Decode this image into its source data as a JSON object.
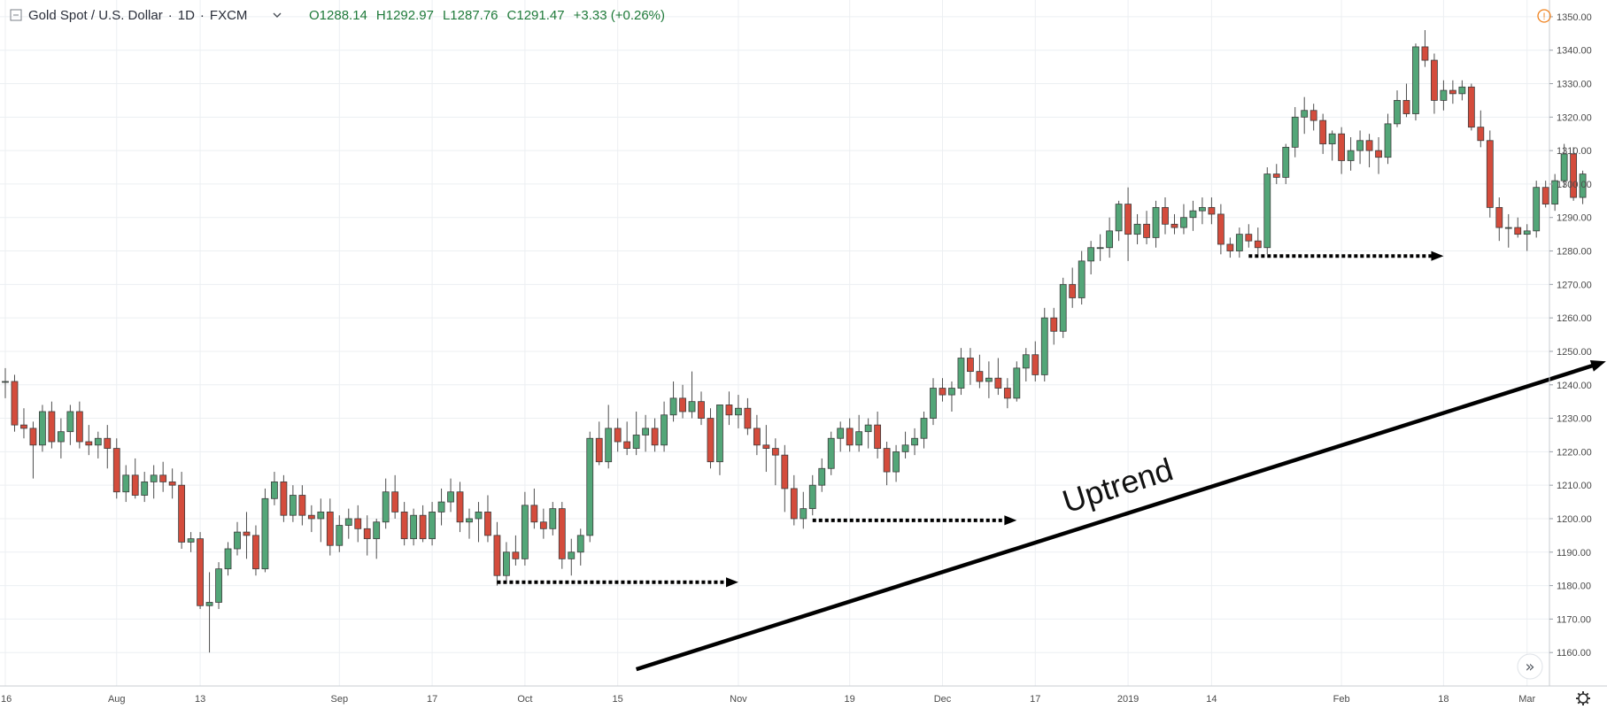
{
  "header": {
    "symbol": "Gold Spot / U.S. Dollar",
    "interval": "1D",
    "exchange": "FXCM",
    "sep": "·",
    "dropdown_icon": "chevron-down-icon",
    "ohlc": {
      "open": "O1288.14",
      "high": "H1292.97",
      "low": "L1287.76",
      "close": "C1291.47",
      "change": "+3.33 (+0.26%)"
    },
    "alert_icon": "alert-circle-icon",
    "alert_glyph": "!"
  },
  "annotation": {
    "text": "Uptrend"
  },
  "colors": {
    "up": "#53a678",
    "down": "#d44c3c",
    "grid": "#eceff2",
    "header_ohlc": "#1f7a3a",
    "alert": "#f0821e"
  },
  "footer": {
    "settings_icon": "gear-icon",
    "scroll_icon": "double-chevron-right-icon",
    "scroll_glyph": "»"
  },
  "chart_data": {
    "type": "candlestick",
    "ylim": [
      1150,
      1355
    ],
    "y_ticks": [
      "1160.00",
      "1170.00",
      "1180.00",
      "1190.00",
      "1200.00",
      "1210.00",
      "1220.00",
      "1230.00",
      "1240.00",
      "1250.00",
      "1260.00",
      "1270.00",
      "1280.00",
      "1290.00",
      "1300.00",
      "1310.00",
      "1320.00",
      "1330.00",
      "1340.00",
      "1350.00"
    ],
    "x_labels": [
      {
        "label": "16",
        "bar": 0
      },
      {
        "label": "Aug",
        "bar": 12
      },
      {
        "label": "13",
        "bar": 21
      },
      {
        "label": "Sep",
        "bar": 36
      },
      {
        "label": "17",
        "bar": 46
      },
      {
        "label": "Oct",
        "bar": 56
      },
      {
        "label": "15",
        "bar": 66
      },
      {
        "label": "Nov",
        "bar": 79
      },
      {
        "label": "19",
        "bar": 91
      },
      {
        "label": "Dec",
        "bar": 101
      },
      {
        "label": "17",
        "bar": 111
      },
      {
        "label": "2019",
        "bar": 121
      },
      {
        "label": "14",
        "bar": 130
      },
      {
        "label": "Feb",
        "bar": 144
      },
      {
        "label": "18",
        "bar": 155
      },
      {
        "label": "Mar",
        "bar": 164
      }
    ],
    "candles": [
      [
        1241,
        1245,
        1236,
        1241
      ],
      [
        1241,
        1243,
        1226,
        1228
      ],
      [
        1228,
        1233,
        1224,
        1227
      ],
      [
        1227,
        1229,
        1212,
        1222
      ],
      [
        1222,
        1234,
        1220,
        1232
      ],
      [
        1232,
        1235,
        1221,
        1223
      ],
      [
        1223,
        1230,
        1218,
        1226
      ],
      [
        1226,
        1234,
        1222,
        1232
      ],
      [
        1232,
        1235,
        1221,
        1223
      ],
      [
        1223,
        1228,
        1219,
        1222
      ],
      [
        1222,
        1226,
        1218,
        1224
      ],
      [
        1224,
        1228,
        1215,
        1221
      ],
      [
        1221,
        1224,
        1206,
        1208
      ],
      [
        1208,
        1216,
        1205,
        1213
      ],
      [
        1213,
        1218,
        1206,
        1207
      ],
      [
        1207,
        1214,
        1205,
        1211
      ],
      [
        1211,
        1216,
        1206,
        1213
      ],
      [
        1213,
        1217,
        1208,
        1211
      ],
      [
        1211,
        1215,
        1206,
        1210
      ],
      [
        1210,
        1214,
        1191,
        1193
      ],
      [
        1193,
        1196,
        1190,
        1194
      ],
      [
        1194,
        1196,
        1173,
        1174
      ],
      [
        1174,
        1184,
        1160,
        1175
      ],
      [
        1175,
        1187,
        1173,
        1185
      ],
      [
        1185,
        1193,
        1183,
        1191
      ],
      [
        1191,
        1199,
        1189,
        1196
      ],
      [
        1196,
        1202,
        1188,
        1195
      ],
      [
        1195,
        1198,
        1183,
        1185
      ],
      [
        1185,
        1209,
        1184,
        1206
      ],
      [
        1206,
        1214,
        1204,
        1211
      ],
      [
        1211,
        1213,
        1199,
        1201
      ],
      [
        1201,
        1210,
        1199,
        1207
      ],
      [
        1207,
        1210,
        1198,
        1201
      ],
      [
        1201,
        1204,
        1196,
        1200
      ],
      [
        1200,
        1206,
        1193,
        1202
      ],
      [
        1202,
        1206,
        1189,
        1192
      ],
      [
        1192,
        1201,
        1190,
        1198
      ],
      [
        1198,
        1203,
        1194,
        1200
      ],
      [
        1200,
        1204,
        1193,
        1197
      ],
      [
        1197,
        1201,
        1189,
        1194
      ],
      [
        1194,
        1200,
        1188,
        1199
      ],
      [
        1199,
        1212,
        1197,
        1208
      ],
      [
        1208,
        1213,
        1200,
        1202
      ],
      [
        1202,
        1205,
        1192,
        1194
      ],
      [
        1194,
        1203,
        1192,
        1201
      ],
      [
        1201,
        1204,
        1193,
        1194
      ],
      [
        1194,
        1205,
        1192,
        1202
      ],
      [
        1202,
        1209,
        1198,
        1205
      ],
      [
        1205,
        1212,
        1202,
        1208
      ],
      [
        1208,
        1211,
        1196,
        1199
      ],
      [
        1199,
        1203,
        1194,
        1200
      ],
      [
        1200,
        1205,
        1193,
        1202
      ],
      [
        1202,
        1207,
        1193,
        1195
      ],
      [
        1195,
        1199,
        1180,
        1183
      ],
      [
        1183,
        1193,
        1181,
        1190
      ],
      [
        1190,
        1195,
        1186,
        1188
      ],
      [
        1188,
        1208,
        1186,
        1204
      ],
      [
        1204,
        1209,
        1197,
        1199
      ],
      [
        1199,
        1203,
        1194,
        1197
      ],
      [
        1197,
        1205,
        1195,
        1203
      ],
      [
        1203,
        1205,
        1185,
        1188
      ],
      [
        1188,
        1194,
        1183,
        1190
      ],
      [
        1190,
        1197,
        1186,
        1195
      ],
      [
        1195,
        1226,
        1193,
        1224
      ],
      [
        1224,
        1229,
        1216,
        1217
      ],
      [
        1217,
        1234,
        1215,
        1227
      ],
      [
        1227,
        1230,
        1220,
        1223
      ],
      [
        1223,
        1229,
        1219,
        1221
      ],
      [
        1221,
        1232,
        1219,
        1225
      ],
      [
        1225,
        1231,
        1220,
        1227
      ],
      [
        1227,
        1230,
        1220,
        1222
      ],
      [
        1222,
        1235,
        1220,
        1231
      ],
      [
        1231,
        1241,
        1229,
        1236
      ],
      [
        1236,
        1240,
        1230,
        1232
      ],
      [
        1232,
        1244,
        1230,
        1235
      ],
      [
        1235,
        1238,
        1228,
        1230
      ],
      [
        1230,
        1233,
        1215,
        1217
      ],
      [
        1217,
        1233,
        1213,
        1234
      ],
      [
        1234,
        1238,
        1228,
        1231
      ],
      [
        1231,
        1237,
        1227,
        1233
      ],
      [
        1233,
        1236,
        1225,
        1227
      ],
      [
        1227,
        1231,
        1219,
        1222
      ],
      [
        1222,
        1228,
        1214,
        1221
      ],
      [
        1221,
        1224,
        1210,
        1219
      ],
      [
        1219,
        1222,
        1202,
        1209
      ],
      [
        1209,
        1213,
        1198,
        1200
      ],
      [
        1200,
        1208,
        1197,
        1203
      ],
      [
        1203,
        1213,
        1201,
        1210
      ],
      [
        1210,
        1218,
        1208,
        1215
      ],
      [
        1215,
        1226,
        1213,
        1224
      ],
      [
        1224,
        1229,
        1220,
        1227
      ],
      [
        1227,
        1230,
        1220,
        1222
      ],
      [
        1222,
        1231,
        1220,
        1226
      ],
      [
        1226,
        1230,
        1221,
        1228
      ],
      [
        1228,
        1232,
        1218,
        1221
      ],
      [
        1221,
        1223,
        1210,
        1214
      ],
      [
        1214,
        1222,
        1211,
        1220
      ],
      [
        1220,
        1226,
        1218,
        1222
      ],
      [
        1222,
        1227,
        1219,
        1224
      ],
      [
        1224,
        1232,
        1221,
        1230
      ],
      [
        1230,
        1242,
        1228,
        1239
      ],
      [
        1239,
        1242,
        1235,
        1237
      ],
      [
        1237,
        1241,
        1232,
        1239
      ],
      [
        1239,
        1251,
        1237,
        1248
      ],
      [
        1248,
        1251,
        1240,
        1244
      ],
      [
        1244,
        1249,
        1239,
        1241
      ],
      [
        1241,
        1247,
        1236,
        1242
      ],
      [
        1242,
        1248,
        1237,
        1239
      ],
      [
        1239,
        1242,
        1233,
        1236
      ],
      [
        1236,
        1247,
        1235,
        1245
      ],
      [
        1245,
        1251,
        1241,
        1249
      ],
      [
        1249,
        1253,
        1241,
        1243
      ],
      [
        1243,
        1263,
        1241,
        1260
      ],
      [
        1260,
        1263,
        1252,
        1256
      ],
      [
        1256,
        1272,
        1254,
        1270
      ],
      [
        1270,
        1275,
        1263,
        1266
      ],
      [
        1266,
        1280,
        1264,
        1277
      ],
      [
        1277,
        1283,
        1273,
        1281
      ],
      [
        1281,
        1285,
        1277,
        1281
      ],
      [
        1281,
        1290,
        1278,
        1286
      ],
      [
        1286,
        1295,
        1283,
        1294
      ],
      [
        1294,
        1299,
        1277,
        1285
      ],
      [
        1285,
        1291,
        1282,
        1288
      ],
      [
        1288,
        1292,
        1282,
        1284
      ],
      [
        1284,
        1295,
        1281,
        1293
      ],
      [
        1293,
        1296,
        1285,
        1288
      ],
      [
        1288,
        1291,
        1285,
        1287
      ],
      [
        1287,
        1294,
        1285,
        1290
      ],
      [
        1290,
        1295,
        1286,
        1292
      ],
      [
        1292,
        1296,
        1288,
        1293
      ],
      [
        1293,
        1296,
        1288,
        1291
      ],
      [
        1291,
        1294,
        1279,
        1282
      ],
      [
        1282,
        1284,
        1278,
        1280
      ],
      [
        1280,
        1287,
        1278,
        1285
      ],
      [
        1285,
        1288,
        1281,
        1283
      ],
      [
        1283,
        1287,
        1279,
        1281
      ],
      [
        1281,
        1305,
        1279,
        1303
      ],
      [
        1303,
        1306,
        1300,
        1302
      ],
      [
        1302,
        1312,
        1300,
        1311
      ],
      [
        1311,
        1323,
        1308,
        1320
      ],
      [
        1320,
        1326,
        1315,
        1322
      ],
      [
        1322,
        1324,
        1316,
        1319
      ],
      [
        1319,
        1321,
        1309,
        1312
      ],
      [
        1312,
        1316,
        1307,
        1315
      ],
      [
        1315,
        1317,
        1303,
        1307
      ],
      [
        1307,
        1314,
        1304,
        1310
      ],
      [
        1310,
        1316,
        1306,
        1313
      ],
      [
        1313,
        1315,
        1305,
        1310
      ],
      [
        1310,
        1314,
        1303,
        1308
      ],
      [
        1308,
        1321,
        1306,
        1318
      ],
      [
        1318,
        1328,
        1317,
        1325
      ],
      [
        1325,
        1330,
        1320,
        1321
      ],
      [
        1321,
        1342,
        1319,
        1341
      ],
      [
        1341,
        1346,
        1335,
        1337
      ],
      [
        1337,
        1339,
        1321,
        1325
      ],
      [
        1325,
        1331,
        1322,
        1328
      ],
      [
        1328,
        1331,
        1324,
        1327
      ],
      [
        1327,
        1331,
        1325,
        1329
      ],
      [
        1329,
        1330,
        1316,
        1317
      ],
      [
        1317,
        1322,
        1311,
        1313
      ],
      [
        1313,
        1316,
        1290,
        1293
      ],
      [
        1293,
        1296,
        1283,
        1287
      ],
      [
        1287,
        1291,
        1281,
        1287
      ],
      [
        1287,
        1290,
        1284,
        1285
      ],
      [
        1285,
        1288,
        1280,
        1286
      ],
      [
        1286,
        1301,
        1284,
        1299
      ],
      [
        1299,
        1301,
        1293,
        1294
      ],
      [
        1294,
        1303,
        1292,
        1301
      ],
      [
        1301,
        1312,
        1299,
        1309
      ],
      [
        1309,
        1311,
        1295,
        1296
      ],
      [
        1296,
        1304,
        1294,
        1303
      ]
    ],
    "arrows": [
      {
        "type": "dotted",
        "from": [
          53,
          1181
        ],
        "to": [
          79,
          1181
        ]
      },
      {
        "type": "dotted",
        "from": [
          87,
          1199.5
        ],
        "to": [
          109,
          1199.5
        ]
      },
      {
        "type": "dotted",
        "from": [
          134,
          1278.5
        ],
        "to": [
          155,
          1278.5
        ]
      },
      {
        "type": "solid",
        "from": [
          68,
          1155
        ],
        "to": [
          172.5,
          1247
        ]
      }
    ]
  }
}
